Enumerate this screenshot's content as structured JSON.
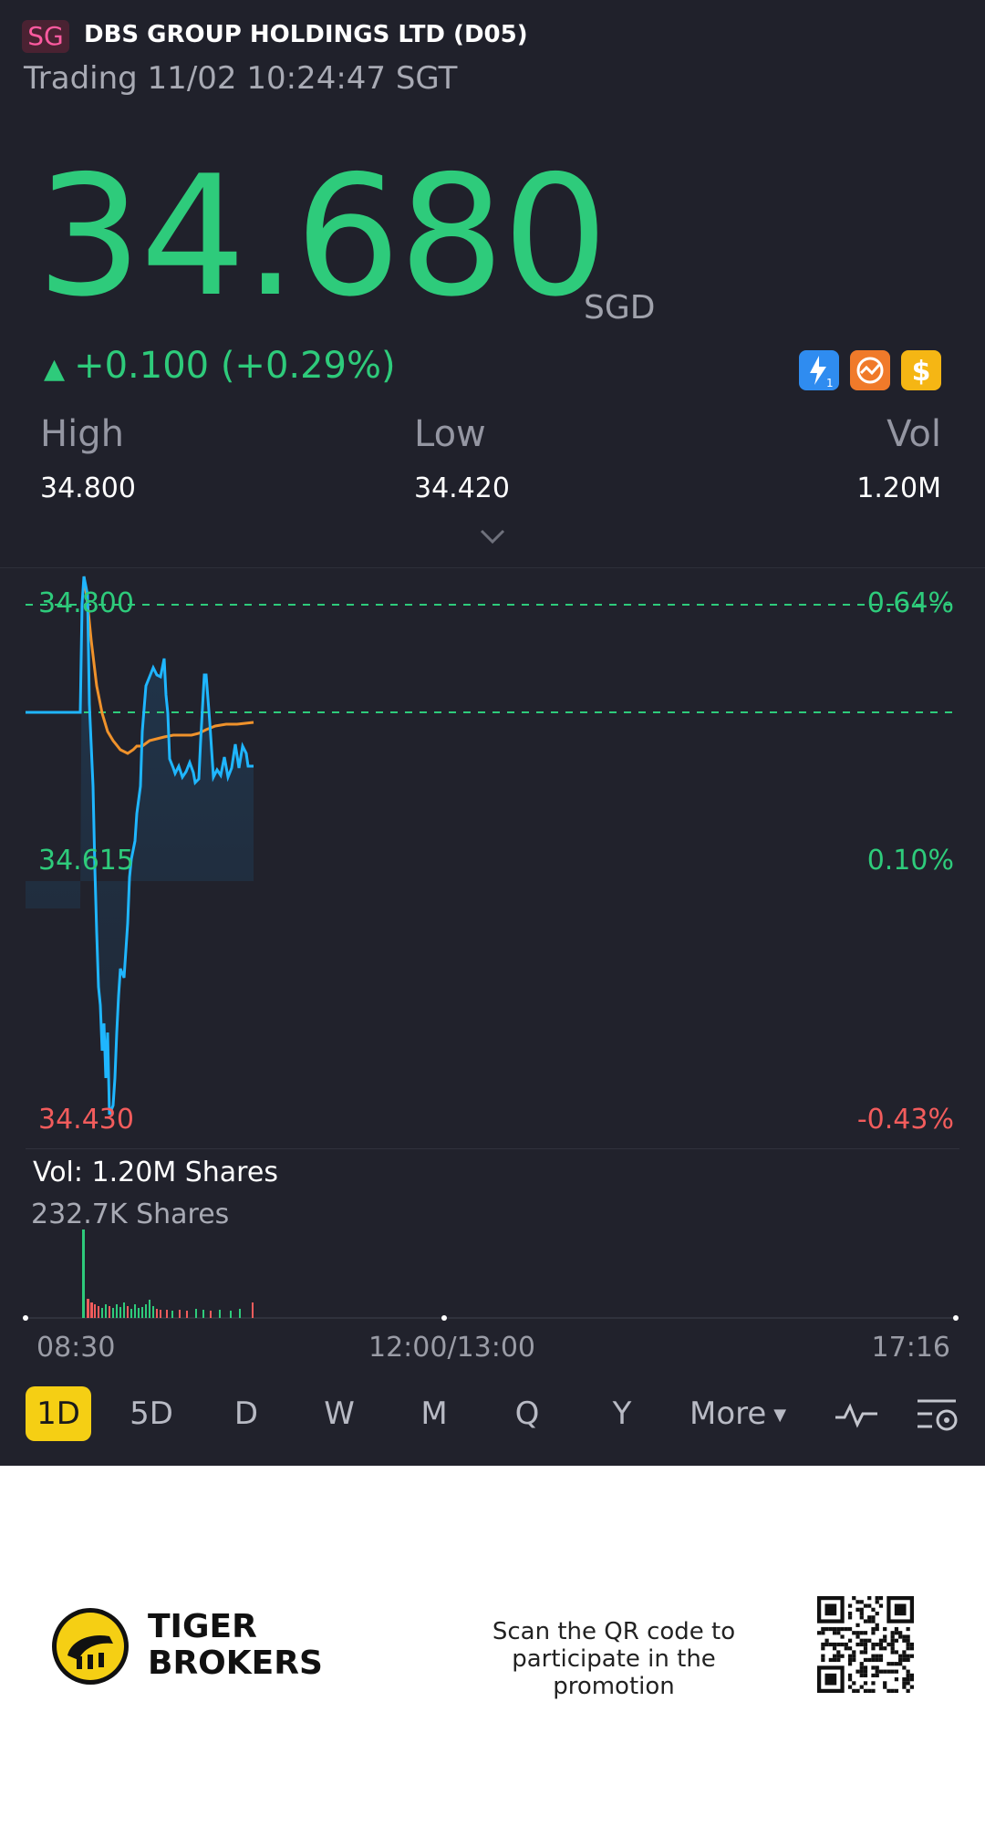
{
  "header": {
    "market_badge": "SG",
    "stock_name": "DBS GROUP HOLDINGS LTD (D05)",
    "trading_status": "Trading 11/02 10:24:47 SGT"
  },
  "quote": {
    "price": "34.680",
    "currency": "SGD",
    "change": "+0.100 (+0.29%)",
    "stats": [
      {
        "label": "High",
        "value": "34.800"
      },
      {
        "label": "Low",
        "value": "34.420"
      },
      {
        "label": "Vol",
        "value": "1.20M"
      }
    ]
  },
  "icons": {
    "expand": "chevron-down-icon",
    "feature_badges": [
      "lightning-level1-icon",
      "trend-options-icon",
      "dollar-icon"
    ],
    "indicator": "indicator-wave-icon",
    "settings": "chart-settings-icon",
    "logo": "tiger-logo-icon",
    "qr": "qr-code-icon"
  },
  "colors": {
    "up": "#2ecb7b",
    "down": "#f25c5c",
    "price_line": "#1fb6ff",
    "avg_line": "#f0922b",
    "active_period": "#f5cf14"
  },
  "chart": {
    "y_left": [
      "34.800",
      "34.615",
      "34.430"
    ],
    "y_right": [
      "0.64%",
      "0.10%",
      "-0.43%"
    ],
    "volume_label": "Vol:   1.20M Shares",
    "volume_sub": "232.7K Shares",
    "time_labels": [
      "08:30",
      "12:00/13:00",
      "17:16"
    ]
  },
  "periods": [
    {
      "label": "1D",
      "active": true
    },
    {
      "label": "5D",
      "active": false
    },
    {
      "label": "D",
      "active": false
    },
    {
      "label": "W",
      "active": false
    },
    {
      "label": "M",
      "active": false
    },
    {
      "label": "Q",
      "active": false
    },
    {
      "label": "Y",
      "active": false
    },
    {
      "label": "More",
      "active": false
    }
  ],
  "footer": {
    "brand_line1": "TIGER",
    "brand_line2": "BROKERS",
    "promo_line1": "Scan the QR code to",
    "promo_line2": "participate in the promotion"
  }
}
